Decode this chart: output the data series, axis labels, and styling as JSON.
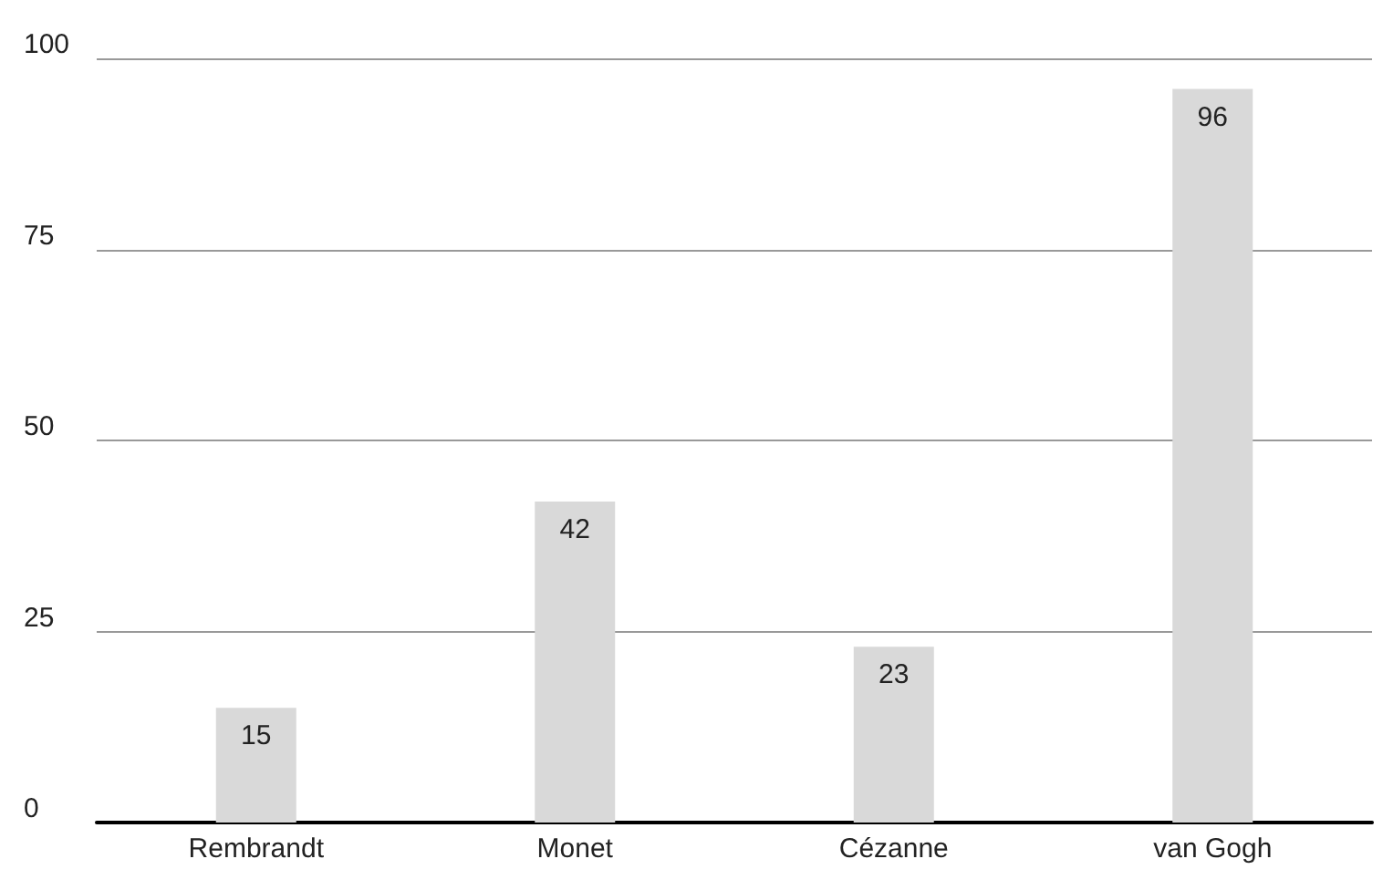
{
  "chart_data": {
    "type": "bar",
    "categories": [
      "Rembrandt",
      "Monet",
      "Cézanne",
      "van Gogh"
    ],
    "values": [
      15,
      42,
      23,
      96
    ],
    "color": "#d9d9d9",
    "ylim": [
      0,
      100
    ],
    "yticks": [
      0,
      25,
      50,
      75,
      100
    ],
    "grid": "y",
    "data_labels": true
  }
}
